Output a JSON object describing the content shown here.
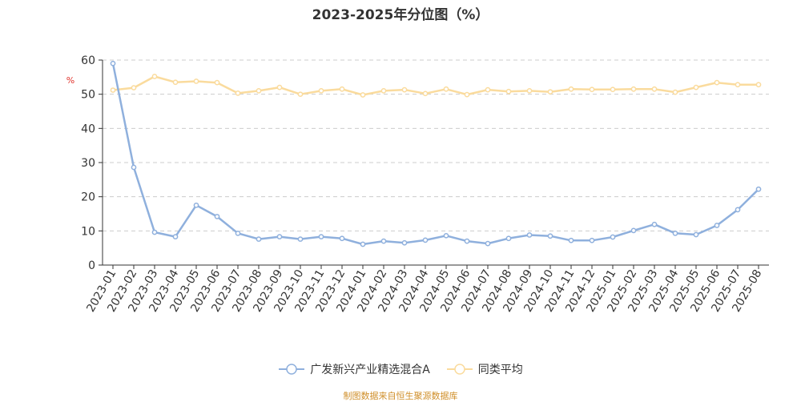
{
  "chart_data": {
    "type": "line",
    "title": "2023-2025年分位图（%）",
    "ylabel": "%",
    "ylim": [
      0,
      60
    ],
    "yticks": [
      0,
      10,
      20,
      30,
      40,
      50,
      60
    ],
    "grid": true,
    "legend_position": "bottom",
    "categories": [
      "2023-01",
      "2023-02",
      "2023-03",
      "2023-04",
      "2023-05",
      "2023-06",
      "2023-07",
      "2023-08",
      "2023-09",
      "2023-10",
      "2023-11",
      "2023-12",
      "2024-01",
      "2024-02",
      "2024-03",
      "2024-04",
      "2024-05",
      "2024-06",
      "2024-07",
      "2024-08",
      "2024-09",
      "2024-10",
      "2024-11",
      "2024-12",
      "2025-01",
      "2025-02",
      "2025-03",
      "2025-04",
      "2025-05",
      "2025-06",
      "2025-07",
      "2025-08"
    ],
    "series": [
      {
        "name": "广发新兴产业精选混合A",
        "color": "#8fb0dd",
        "values": [
          59.0,
          28.6,
          9.6,
          8.3,
          17.5,
          14.2,
          9.3,
          7.6,
          8.3,
          7.6,
          8.3,
          7.8,
          6.1,
          7.0,
          6.5,
          7.3,
          8.6,
          7.0,
          6.3,
          7.8,
          8.8,
          8.5,
          7.2,
          7.2,
          8.2,
          10.1,
          11.9,
          9.3,
          8.9,
          11.6,
          16.2,
          22.2
        ]
      },
      {
        "name": "同类平均",
        "color": "#fadb9d",
        "values": [
          51.2,
          51.9,
          55.2,
          53.5,
          53.8,
          53.4,
          50.3,
          51.0,
          52.0,
          50.0,
          51.0,
          51.5,
          49.8,
          51.0,
          51.3,
          50.2,
          51.5,
          49.9,
          51.3,
          50.8,
          51.0,
          50.7,
          51.5,
          51.4,
          51.4,
          51.5,
          51.5,
          50.6,
          52.0,
          53.4,
          52.8,
          52.8
        ]
      }
    ]
  },
  "source_note": "制图数据来自恒生聚源数据库"
}
